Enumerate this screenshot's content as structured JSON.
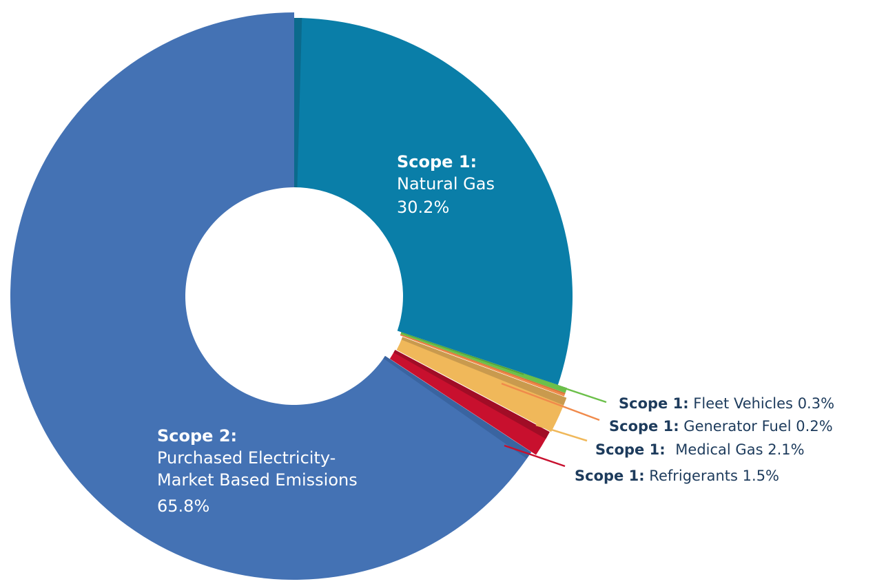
{
  "chart_data": {
    "type": "pie",
    "style": "donut",
    "title": "",
    "slices": [
      {
        "scope": "Scope 1:",
        "label": "Natural Gas",
        "value": 30.2,
        "display": "30.2%",
        "color": "#0a7ea8",
        "edge": "#0b6a8c"
      },
      {
        "scope": "Scope 1:",
        "label": "Fleet Vehicles",
        "value": 0.3,
        "display": "0.3%",
        "color": "#6cc04a",
        "edge": "#55a33a"
      },
      {
        "scope": "Scope 1:",
        "label": "Generator Fuel",
        "value": 0.2,
        "display": "0.2%",
        "color": "#f08a4b",
        "edge": "#d7733a"
      },
      {
        "scope": "Scope 1:",
        "label": "Medical Gas",
        "value": 2.1,
        "display": "2.1%",
        "color": "#f0b85a",
        "edge": "#c99a4e"
      },
      {
        "scope": "Scope 1:",
        "label": "Refrigerants",
        "value": 1.5,
        "display": "1.5%",
        "color": "#c8102e",
        "edge": "#a10d26"
      },
      {
        "scope": "Scope 2:",
        "label_lines": [
          "Purchased Electricity-",
          "Market Based Emissions"
        ],
        "value": 65.8,
        "display": "65.8%",
        "color": "#4472b4",
        "edge": "#3a64a0"
      }
    ]
  }
}
